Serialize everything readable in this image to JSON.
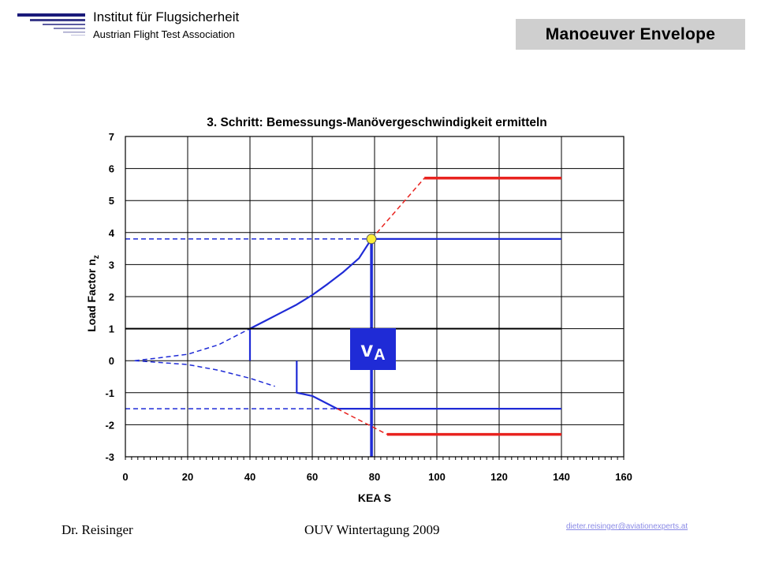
{
  "header": {
    "institute_name": "Institut für Flugsicherheit",
    "institute_sub": "Austrian Flight Test Association",
    "slide_title": "Manoeuver Envelope"
  },
  "footer": {
    "author": "Dr. Reisinger",
    "event": "OUV Wintertagung 2009",
    "email": "dieter.reisinger@aviationexperts.at"
  },
  "colors": {
    "blue": "#1f2bd6",
    "red": "#e8231f",
    "yellow": "#ffef3a",
    "title_box": "#cfcfcf"
  },
  "chart_data": {
    "type": "line",
    "title": "3. Schritt: Bemessungs-Manövergeschwindigkeit ermitteln",
    "xlabel": "KEA S",
    "ylabel": "Load Factor n",
    "ylabel_sub": "z",
    "xlim": [
      0,
      160
    ],
    "ylim": [
      -3,
      7
    ],
    "x_ticks": [
      0,
      20,
      40,
      60,
      80,
      100,
      120,
      140,
      160
    ],
    "y_ticks": [
      -3,
      -2,
      -1,
      0,
      1,
      2,
      3,
      4,
      5,
      6,
      7
    ],
    "grid": true,
    "va_label": "v",
    "va_sub": "A",
    "va_point": {
      "x": 79,
      "y": 3.8
    },
    "series": [
      {
        "color": "blue",
        "style": "solid",
        "points": [
          [
            40,
            1
          ],
          [
            45,
            1.25
          ],
          [
            50,
            1.5
          ],
          [
            55,
            1.75
          ],
          [
            60,
            2.05
          ],
          [
            65,
            2.4
          ],
          [
            70,
            2.77
          ],
          [
            75,
            3.2
          ],
          [
            79,
            3.8
          ]
        ]
      },
      {
        "color": "blue",
        "style": "solid",
        "points": [
          [
            79,
            3.8
          ],
          [
            140,
            3.8
          ]
        ]
      },
      {
        "color": "blue",
        "style": "dashed",
        "points": [
          [
            0,
            3.8
          ],
          [
            79,
            3.8
          ]
        ]
      },
      {
        "color": "blue",
        "style": "dashed",
        "points": [
          [
            3,
            0
          ],
          [
            10,
            0.08
          ],
          [
            20,
            0.2
          ],
          [
            30,
            0.5
          ],
          [
            40,
            1
          ]
        ]
      },
      {
        "color": "blue",
        "style": "dashed",
        "points": [
          [
            3,
            0
          ],
          [
            10,
            -0.05
          ],
          [
            20,
            -0.12
          ],
          [
            30,
            -0.3
          ],
          [
            40,
            -0.55
          ],
          [
            48,
            -0.8
          ]
        ]
      },
      {
        "color": "blue",
        "style": "solid",
        "points": [
          [
            40,
            0
          ],
          [
            40,
            1
          ]
        ]
      },
      {
        "color": "blue",
        "style": "solid",
        "points": [
          [
            55,
            0
          ],
          [
            55,
            -1
          ],
          [
            60,
            -1.1
          ],
          [
            68,
            -1.5
          ]
        ]
      },
      {
        "color": "blue",
        "style": "solid",
        "points": [
          [
            68,
            -1.5
          ],
          [
            140,
            -1.5
          ]
        ]
      },
      {
        "color": "blue",
        "style": "dashed",
        "points": [
          [
            0,
            -1.5
          ],
          [
            68,
            -1.5
          ]
        ]
      },
      {
        "color": "blue",
        "style": "thick",
        "points": [
          [
            79,
            -3
          ],
          [
            79,
            3.8
          ]
        ]
      },
      {
        "color": "red",
        "style": "dashed",
        "points": [
          [
            79,
            3.8
          ],
          [
            96,
            5.7
          ]
        ]
      },
      {
        "color": "red",
        "style": "thick",
        "points": [
          [
            96,
            5.7
          ],
          [
            140,
            5.7
          ]
        ]
      },
      {
        "color": "red",
        "style": "dashed",
        "points": [
          [
            68,
            -1.5
          ],
          [
            84,
            -2.3
          ]
        ]
      },
      {
        "color": "red",
        "style": "thick",
        "points": [
          [
            84,
            -2.3
          ],
          [
            140,
            -2.3
          ]
        ]
      },
      {
        "color": "black",
        "style": "solid",
        "points": [
          [
            0,
            1
          ],
          [
            140,
            1
          ]
        ]
      }
    ]
  }
}
